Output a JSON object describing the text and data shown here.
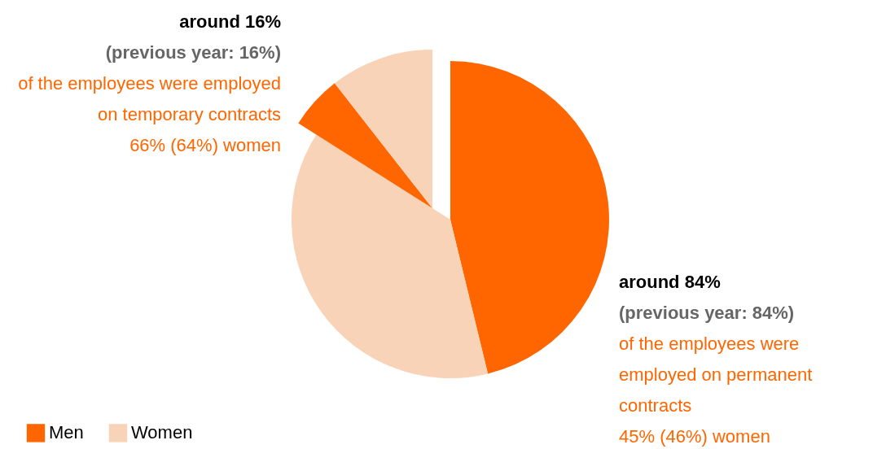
{
  "chart_data": {
    "type": "pie",
    "categories": [
      "Men",
      "Women",
      null,
      null
    ],
    "values": [
      46.2,
      37.8,
      5.44,
      10.56
    ],
    "colors": [
      "#ff6600",
      "#f9d3b7",
      "#ff6600",
      "#f9d3b7"
    ],
    "legend": "bottom left",
    "annotations": [
      "around 16%",
      "(previous year: 16%)",
      "of the employees were employed on temporary contracts",
      "66% (64%) women",
      "around 84%",
      "(previous year: 84%)",
      "of the employees were employed on permanent contracts",
      "45% (46%) women"
    ]
  }
}
